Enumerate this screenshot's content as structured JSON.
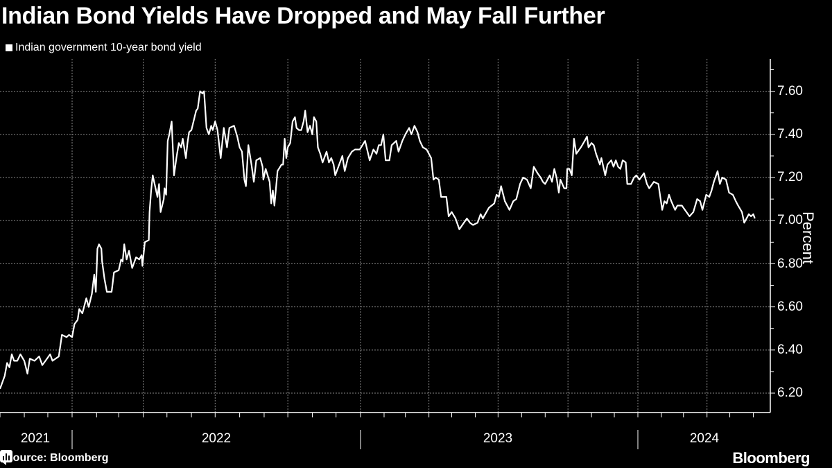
{
  "title": "Indian Bond Yields Have Dropped and May Fall Further",
  "source": "Source: Bloomberg",
  "brand": "Bloomberg",
  "chart_data": {
    "type": "line",
    "title": "Indian Bond Yields Have Dropped and May Fall Further",
    "ylabel": "Percent",
    "xlabel": "",
    "y_axis_side": "right",
    "ylim": [
      6.11,
      7.75
    ],
    "y_ticks": [
      "7.60",
      "7.40",
      "7.20",
      "7.00",
      "6.80",
      "6.60",
      "6.40",
      "6.20"
    ],
    "x_ticks": [
      "2021",
      "2022",
      "2023",
      "2024"
    ],
    "xlim": [
      "2021-10-01",
      "2024-06-10"
    ],
    "grid": true,
    "legend_position": "top-left",
    "line_color": "#ffffff",
    "background_color": "#000000",
    "series": [
      {
        "name": "Indian government 10-year bond yield",
        "points": [
          [
            "2021-10-01",
            6.22
          ],
          [
            "2021-10-04",
            6.25
          ],
          [
            "2021-10-07",
            6.28
          ],
          [
            "2021-10-10",
            6.34
          ],
          [
            "2021-10-13",
            6.32
          ],
          [
            "2021-10-16",
            6.38
          ],
          [
            "2021-10-19",
            6.35
          ],
          [
            "2021-10-23",
            6.35
          ],
          [
            "2021-10-27",
            6.38
          ],
          [
            "2021-11-01",
            6.35
          ],
          [
            "2021-11-05",
            6.29
          ],
          [
            "2021-11-08",
            6.36
          ],
          [
            "2021-11-14",
            6.35
          ],
          [
            "2021-11-20",
            6.37
          ],
          [
            "2021-11-24",
            6.33
          ],
          [
            "2021-11-28",
            6.35
          ],
          [
            "2021-12-04",
            6.38
          ],
          [
            "2021-12-07",
            6.35
          ],
          [
            "2021-12-15",
            6.37
          ],
          [
            "2021-12-19",
            6.47
          ],
          [
            "2021-12-25",
            6.46
          ],
          [
            "2021-12-28",
            6.47
          ],
          [
            "2022-01-01",
            6.46
          ],
          [
            "2022-01-04",
            6.52
          ],
          [
            "2022-01-08",
            6.54
          ],
          [
            "2022-01-10",
            6.59
          ],
          [
            "2022-01-14",
            6.57
          ],
          [
            "2022-01-19",
            6.64
          ],
          [
            "2022-01-22",
            6.6
          ],
          [
            "2022-01-26",
            6.66
          ],
          [
            "2022-01-29",
            6.75
          ],
          [
            "2022-01-31",
            6.67
          ],
          [
            "2022-02-02",
            6.87
          ],
          [
            "2022-02-04",
            6.89
          ],
          [
            "2022-02-07",
            6.87
          ],
          [
            "2022-02-08",
            6.81
          ],
          [
            "2022-02-11",
            6.73
          ],
          [
            "2022-02-14",
            6.67
          ],
          [
            "2022-02-20",
            6.67
          ],
          [
            "2022-02-23",
            6.76
          ],
          [
            "2022-03-01",
            6.77
          ],
          [
            "2022-03-04",
            6.82
          ],
          [
            "2022-03-06",
            6.81
          ],
          [
            "2022-03-08",
            6.89
          ],
          [
            "2022-03-11",
            6.82
          ],
          [
            "2022-03-14",
            6.86
          ],
          [
            "2022-03-18",
            6.78
          ],
          [
            "2022-03-23",
            6.83
          ],
          [
            "2022-03-27",
            6.82
          ],
          [
            "2022-03-30",
            6.84
          ],
          [
            "2022-03-31",
            6.79
          ],
          [
            "2022-04-03",
            6.9
          ],
          [
            "2022-04-08",
            6.91
          ],
          [
            "2022-04-09",
            7.04
          ],
          [
            "2022-04-11",
            7.14
          ],
          [
            "2022-04-13",
            7.21
          ],
          [
            "2022-04-16",
            7.16
          ],
          [
            "2022-04-19",
            7.11
          ],
          [
            "2022-04-21",
            7.17
          ],
          [
            "2022-04-23",
            7.04
          ],
          [
            "2022-04-27",
            7.1
          ],
          [
            "2022-04-28",
            7.15
          ],
          [
            "2022-04-30",
            7.12
          ],
          [
            "2022-05-02",
            7.37
          ],
          [
            "2022-05-04",
            7.4
          ],
          [
            "2022-05-07",
            7.46
          ],
          [
            "2022-05-10",
            7.21
          ],
          [
            "2022-05-13",
            7.29
          ],
          [
            "2022-05-16",
            7.36
          ],
          [
            "2022-05-19",
            7.34
          ],
          [
            "2022-05-21",
            7.38
          ],
          [
            "2022-05-25",
            7.29
          ],
          [
            "2022-05-27",
            7.36
          ],
          [
            "2022-05-29",
            7.41
          ],
          [
            "2022-06-01",
            7.42
          ],
          [
            "2022-06-07",
            7.51
          ],
          [
            "2022-06-09",
            7.52
          ],
          [
            "2022-06-12",
            7.6
          ],
          [
            "2022-06-15",
            7.59
          ],
          [
            "2022-06-17",
            7.6
          ],
          [
            "2022-06-20",
            7.43
          ],
          [
            "2022-06-23",
            7.4
          ],
          [
            "2022-06-26",
            7.44
          ],
          [
            "2022-06-28",
            7.42
          ],
          [
            "2022-07-01",
            7.46
          ],
          [
            "2022-07-04",
            7.42
          ],
          [
            "2022-07-08",
            7.29
          ],
          [
            "2022-07-12",
            7.43
          ],
          [
            "2022-07-16",
            7.34
          ],
          [
            "2022-07-19",
            7.43
          ],
          [
            "2022-07-25",
            7.44
          ],
          [
            "2022-07-29",
            7.39
          ],
          [
            "2022-08-01",
            7.34
          ],
          [
            "2022-08-04",
            7.32
          ],
          [
            "2022-08-07",
            7.19
          ],
          [
            "2022-08-09",
            7.16
          ],
          [
            "2022-08-12",
            7.35
          ],
          [
            "2022-08-16",
            7.26
          ],
          [
            "2022-08-19",
            7.18
          ],
          [
            "2022-08-22",
            7.28
          ],
          [
            "2022-08-27",
            7.29
          ],
          [
            "2022-08-30",
            7.25
          ],
          [
            "2022-08-31",
            7.19
          ],
          [
            "2022-09-03",
            7.24
          ],
          [
            "2022-09-08",
            7.18
          ],
          [
            "2022-09-10",
            7.08
          ],
          [
            "2022-09-12",
            7.14
          ],
          [
            "2022-09-14",
            7.07
          ],
          [
            "2022-09-18",
            7.23
          ],
          [
            "2022-09-23",
            7.26
          ],
          [
            "2022-09-25",
            7.26
          ],
          [
            "2022-09-27",
            7.38
          ],
          [
            "2022-09-29",
            7.29
          ],
          [
            "2022-10-01",
            7.34
          ],
          [
            "2022-10-04",
            7.36
          ],
          [
            "2022-10-07",
            7.46
          ],
          [
            "2022-10-10",
            7.48
          ],
          [
            "2022-10-12",
            7.43
          ],
          [
            "2022-10-15",
            7.42
          ],
          [
            "2022-10-18",
            7.42
          ],
          [
            "2022-10-21",
            7.46
          ],
          [
            "2022-10-23",
            7.51
          ],
          [
            "2022-10-26",
            7.41
          ],
          [
            "2022-10-29",
            7.44
          ],
          [
            "2022-11-01",
            7.4
          ],
          [
            "2022-11-03",
            7.48
          ],
          [
            "2022-11-06",
            7.46
          ],
          [
            "2022-11-08",
            7.34
          ],
          [
            "2022-11-11",
            7.31
          ],
          [
            "2022-11-14",
            7.27
          ],
          [
            "2022-11-19",
            7.32
          ],
          [
            "2022-11-22",
            7.27
          ],
          [
            "2022-11-25",
            7.29
          ],
          [
            "2022-11-28",
            7.26
          ],
          [
            "2022-11-30",
            7.21
          ],
          [
            "2022-12-05",
            7.26
          ],
          [
            "2022-12-09",
            7.3
          ],
          [
            "2022-12-12",
            7.23
          ],
          [
            "2022-12-16",
            7.29
          ],
          [
            "2022-12-21",
            7.32
          ],
          [
            "2022-12-25",
            7.33
          ],
          [
            "2022-12-31",
            7.33
          ],
          [
            "2023-01-07",
            7.37
          ],
          [
            "2023-01-13",
            7.28
          ],
          [
            "2023-01-18",
            7.33
          ],
          [
            "2023-01-22",
            7.31
          ],
          [
            "2023-01-25",
            7.35
          ],
          [
            "2023-01-28",
            7.35
          ],
          [
            "2023-01-31",
            7.4
          ],
          [
            "2023-02-03",
            7.28
          ],
          [
            "2023-02-08",
            7.28
          ],
          [
            "2023-02-11",
            7.35
          ],
          [
            "2023-02-17",
            7.37
          ],
          [
            "2023-02-20",
            7.32
          ],
          [
            "2023-02-25",
            7.37
          ],
          [
            "2023-03-01",
            7.4
          ],
          [
            "2023-03-06",
            7.43
          ],
          [
            "2023-03-09",
            7.4
          ],
          [
            "2023-03-13",
            7.44
          ],
          [
            "2023-03-17",
            7.41
          ],
          [
            "2023-03-20",
            7.37
          ],
          [
            "2023-03-24",
            7.34
          ],
          [
            "2023-03-29",
            7.33
          ],
          [
            "2023-04-04",
            7.29
          ],
          [
            "2023-04-07",
            7.19
          ],
          [
            "2023-04-10",
            7.2
          ],
          [
            "2023-04-14",
            7.19
          ],
          [
            "2023-04-17",
            7.11
          ],
          [
            "2023-04-24",
            7.11
          ],
          [
            "2023-04-27",
            7.02
          ],
          [
            "2023-05-01",
            7.04
          ],
          [
            "2023-05-06",
            7.01
          ],
          [
            "2023-05-11",
            6.96
          ],
          [
            "2023-05-15",
            6.98
          ],
          [
            "2023-05-21",
            7.01
          ],
          [
            "2023-05-25",
            6.99
          ],
          [
            "2023-05-29",
            6.98
          ],
          [
            "2023-06-04",
            6.99
          ],
          [
            "2023-06-08",
            7.03
          ],
          [
            "2023-06-11",
            7.01
          ],
          [
            "2023-06-19",
            7.06
          ],
          [
            "2023-06-26",
            7.08
          ],
          [
            "2023-06-29",
            7.12
          ],
          [
            "2023-07-02",
            7.11
          ],
          [
            "2023-07-05",
            7.16
          ],
          [
            "2023-07-10",
            7.09
          ],
          [
            "2023-07-16",
            7.05
          ],
          [
            "2023-07-21",
            7.09
          ],
          [
            "2023-07-25",
            7.1
          ],
          [
            "2023-07-30",
            7.17
          ],
          [
            "2023-08-03",
            7.2
          ],
          [
            "2023-08-08",
            7.19
          ],
          [
            "2023-08-13",
            7.15
          ],
          [
            "2023-08-17",
            7.25
          ],
          [
            "2023-08-22",
            7.22
          ],
          [
            "2023-08-26",
            7.2
          ],
          [
            "2023-08-29",
            7.18
          ],
          [
            "2023-09-01",
            7.17
          ],
          [
            "2023-09-07",
            7.21
          ],
          [
            "2023-09-10",
            7.18
          ],
          [
            "2023-09-13",
            7.24
          ],
          [
            "2023-09-16",
            7.2
          ],
          [
            "2023-09-19",
            7.13
          ],
          [
            "2023-09-21",
            7.19
          ],
          [
            "2023-09-26",
            7.15
          ],
          [
            "2023-09-29",
            7.15
          ],
          [
            "2023-09-30",
            7.24
          ],
          [
            "2023-10-03",
            7.24
          ],
          [
            "2023-10-06",
            7.21
          ],
          [
            "2023-10-09",
            7.38
          ],
          [
            "2023-10-12",
            7.31
          ],
          [
            "2023-10-18",
            7.34
          ],
          [
            "2023-10-23",
            7.37
          ],
          [
            "2023-10-26",
            7.39
          ],
          [
            "2023-10-28",
            7.34
          ],
          [
            "2023-11-01",
            7.36
          ],
          [
            "2023-11-04",
            7.35
          ],
          [
            "2023-11-07",
            7.31
          ],
          [
            "2023-11-12",
            7.26
          ],
          [
            "2023-11-14",
            7.29
          ],
          [
            "2023-11-19",
            7.21
          ],
          [
            "2023-11-22",
            7.26
          ],
          [
            "2023-11-27",
            7.28
          ],
          [
            "2023-11-30",
            7.25
          ],
          [
            "2023-12-03",
            7.28
          ],
          [
            "2023-12-06",
            7.25
          ],
          [
            "2023-12-09",
            7.24
          ],
          [
            "2023-12-12",
            7.28
          ],
          [
            "2023-12-16",
            7.27
          ],
          [
            "2023-12-18",
            7.17
          ],
          [
            "2023-12-23",
            7.17
          ],
          [
            "2023-12-27",
            7.2
          ],
          [
            "2023-12-30",
            7.21
          ],
          [
            "2024-01-03",
            7.19
          ],
          [
            "2024-01-09",
            7.22
          ],
          [
            "2024-01-13",
            7.17
          ],
          [
            "2024-01-16",
            7.15
          ],
          [
            "2024-01-22",
            7.18
          ],
          [
            "2024-01-28",
            7.17
          ],
          [
            "2024-02-02",
            7.05
          ],
          [
            "2024-02-05",
            7.09
          ],
          [
            "2024-02-08",
            7.08
          ],
          [
            "2024-02-11",
            7.12
          ],
          [
            "2024-02-14",
            7.09
          ],
          [
            "2024-02-19",
            7.05
          ],
          [
            "2024-02-22",
            7.07
          ],
          [
            "2024-02-28",
            7.07
          ],
          [
            "2024-03-03",
            7.05
          ],
          [
            "2024-03-09",
            7.02
          ],
          [
            "2024-03-14",
            7.04
          ],
          [
            "2024-03-19",
            7.1
          ],
          [
            "2024-03-23",
            7.09
          ],
          [
            "2024-03-26",
            7.05
          ],
          [
            "2024-03-31",
            7.12
          ],
          [
            "2024-04-04",
            7.11
          ],
          [
            "2024-04-07",
            7.14
          ],
          [
            "2024-04-10",
            7.18
          ],
          [
            "2024-04-15",
            7.23
          ],
          [
            "2024-04-18",
            7.17
          ],
          [
            "2024-04-21",
            7.2
          ],
          [
            "2024-04-26",
            7.19
          ],
          [
            "2024-04-30",
            7.13
          ],
          [
            "2024-05-05",
            7.12
          ],
          [
            "2024-05-09",
            7.09
          ],
          [
            "2024-05-12",
            7.07
          ],
          [
            "2024-05-17",
            7.04
          ],
          [
            "2024-05-20",
            6.99
          ],
          [
            "2024-05-23",
            7.01
          ],
          [
            "2024-05-26",
            7.03
          ],
          [
            "2024-05-29",
            7.02
          ],
          [
            "2024-06-01",
            7.03
          ],
          [
            "2024-06-03",
            7.01
          ]
        ]
      }
    ]
  }
}
